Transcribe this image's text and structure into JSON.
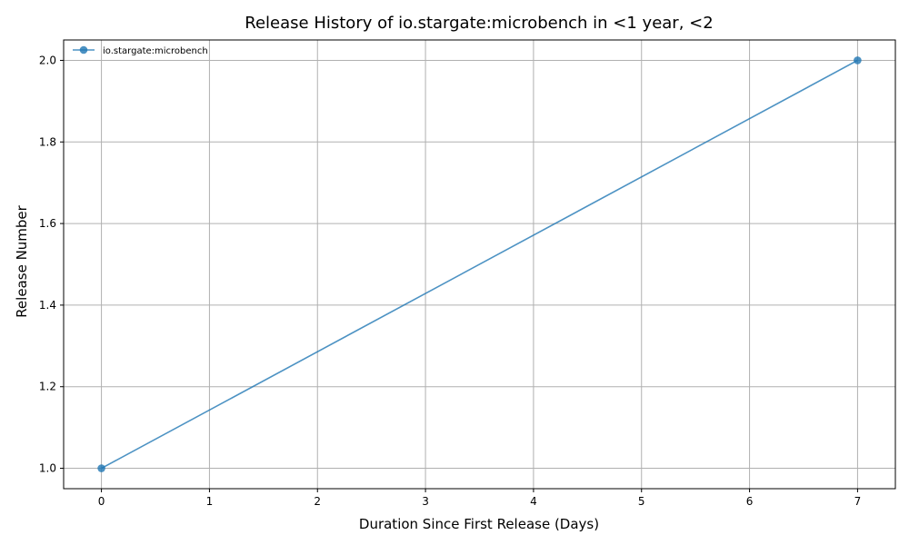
{
  "chart_data": {
    "type": "line",
    "title": "Release History of io.stargate:microbench in <1 year, <2",
    "xlabel": "Duration Since First Release (Days)",
    "ylabel": "Release Number",
    "xlim": [
      -0.35,
      7.35
    ],
    "ylim": [
      0.95,
      2.05
    ],
    "x_ticks": [
      0,
      1,
      2,
      3,
      4,
      5,
      6,
      7
    ],
    "y_ticks": [
      1.0,
      1.2,
      1.4,
      1.6,
      1.8,
      2.0
    ],
    "x_tick_labels": [
      "0",
      "1",
      "2",
      "3",
      "4",
      "5",
      "6",
      "7"
    ],
    "y_tick_labels": [
      "1.0",
      "1.2",
      "1.4",
      "1.6",
      "1.8",
      "2.0"
    ],
    "grid": true,
    "legend_position": "top-left",
    "series": [
      {
        "name": "io.stargate:microbench",
        "color": "#1f77b4",
        "x": [
          0,
          7
        ],
        "y": [
          1,
          2
        ]
      }
    ]
  }
}
